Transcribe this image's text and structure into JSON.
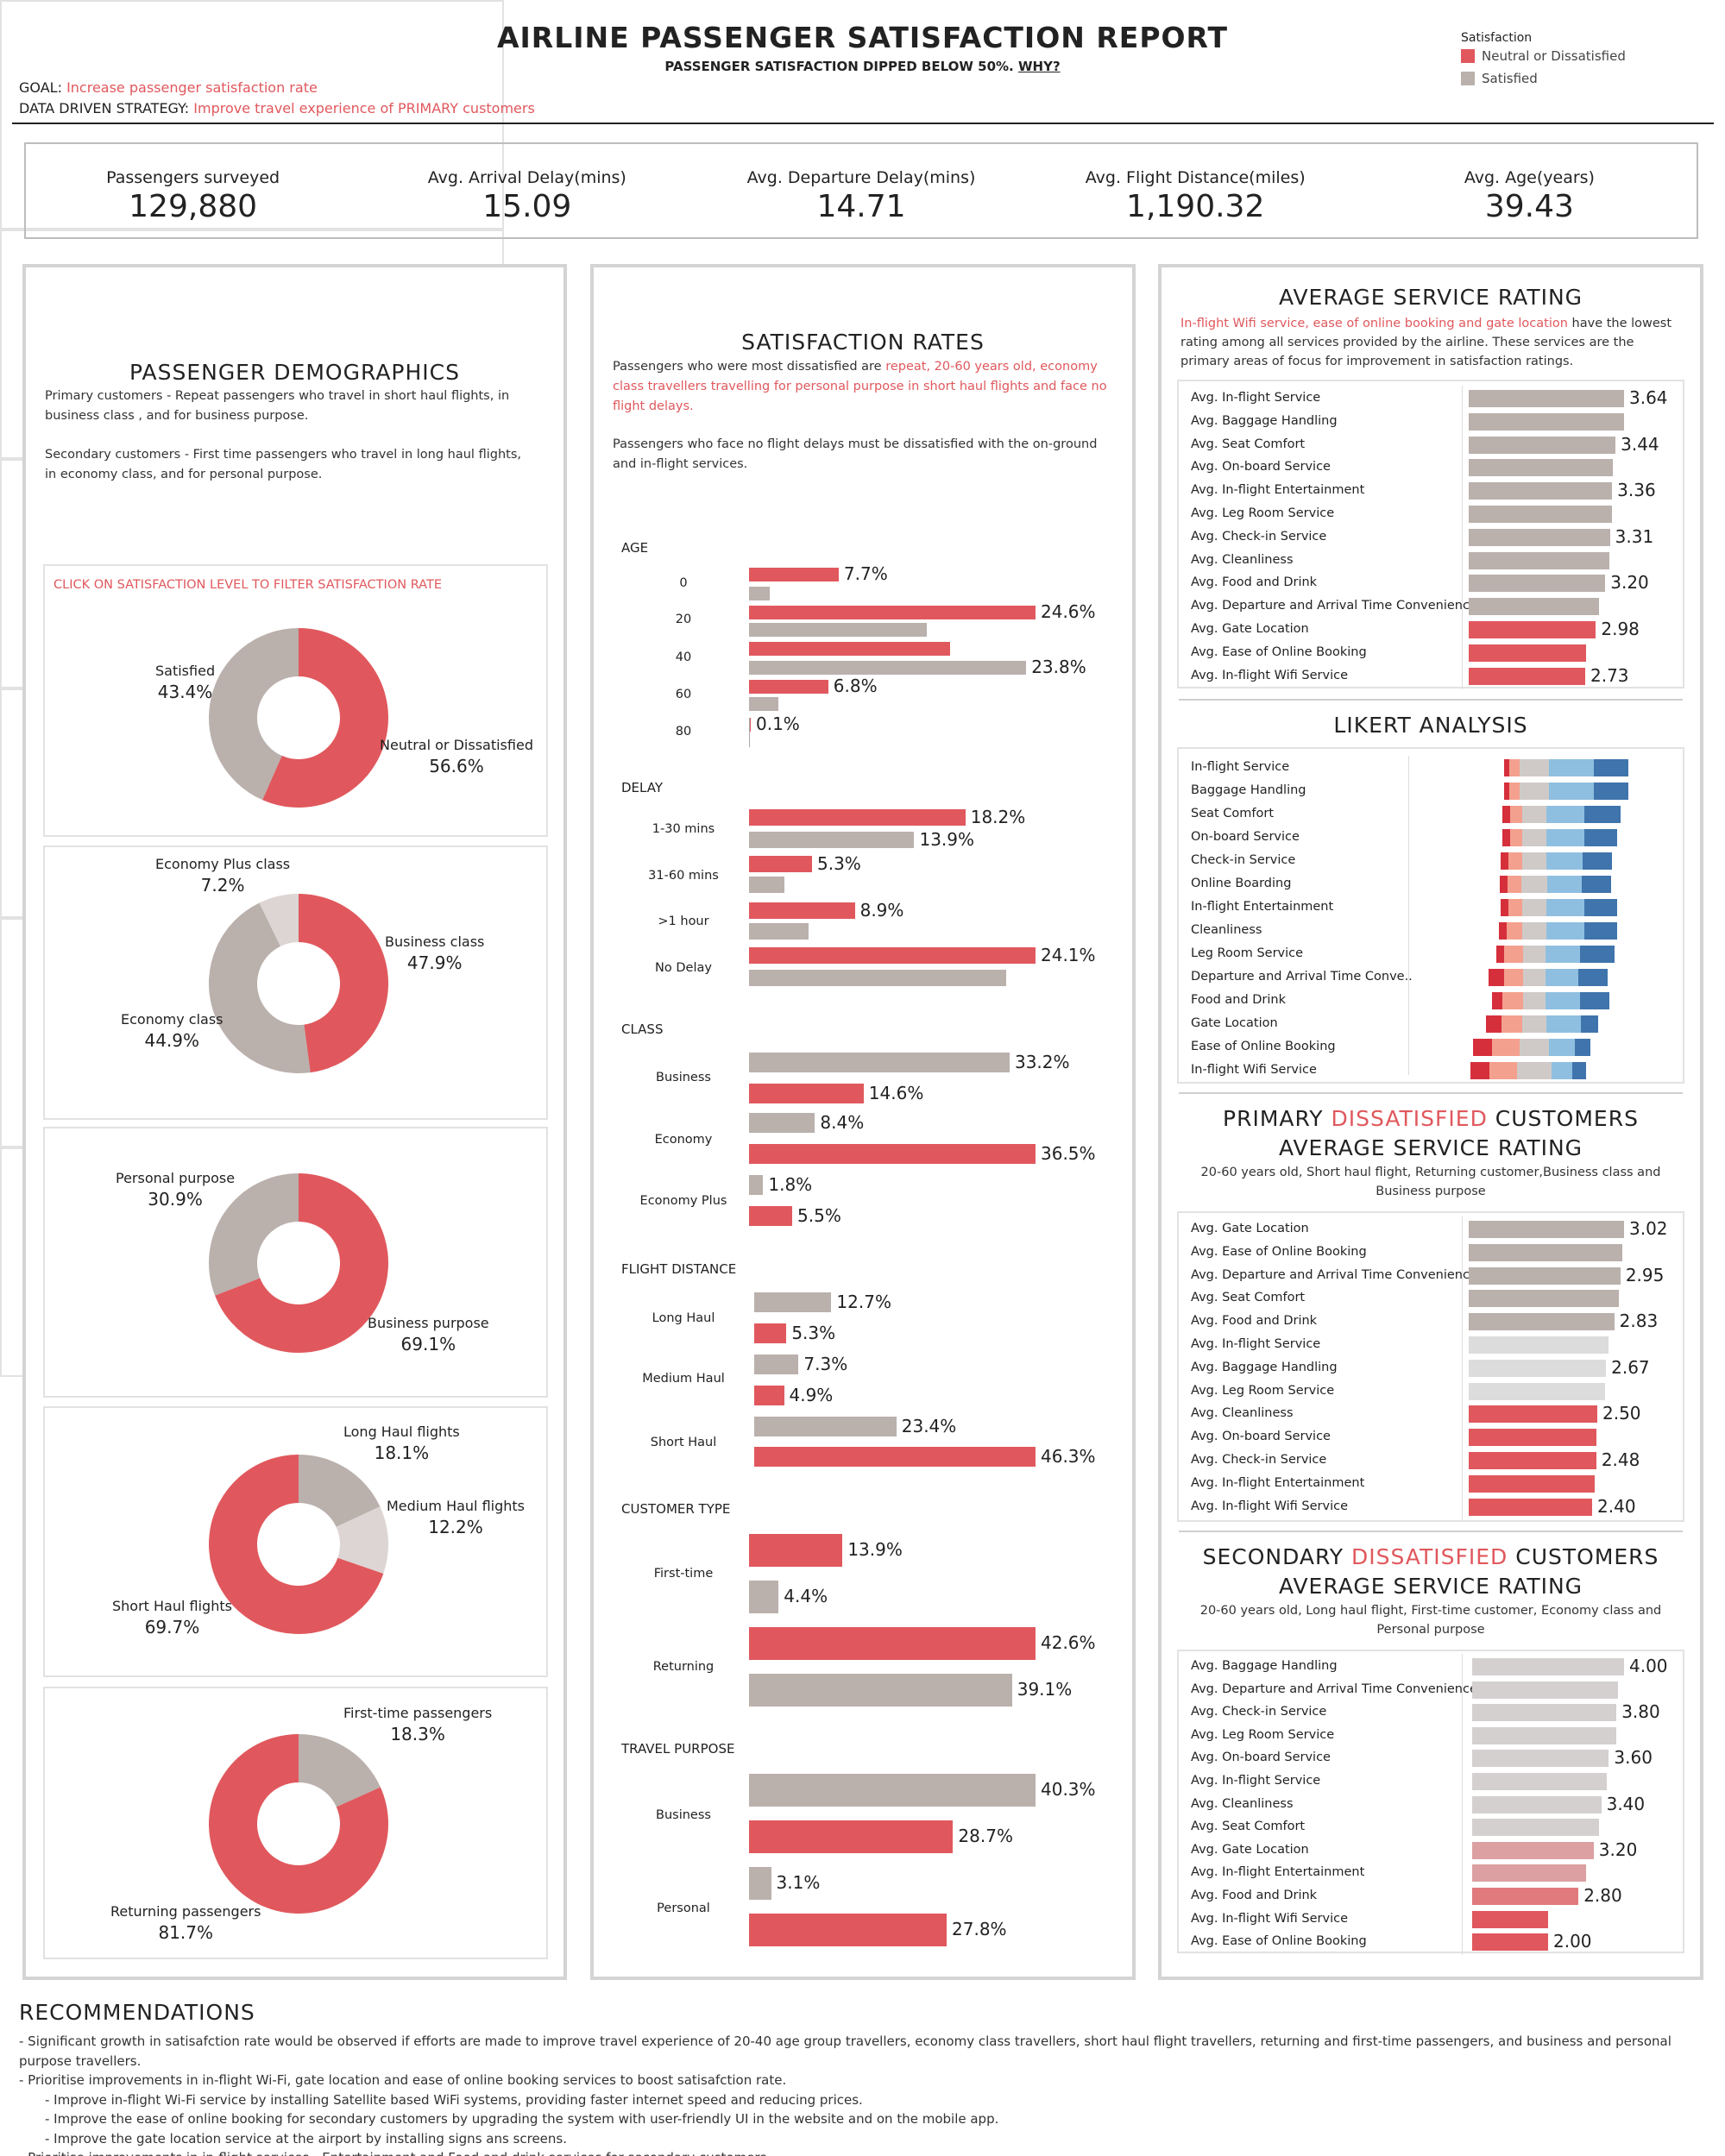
{
  "header": {
    "title": "AIRLINE PASSENGER SATISFACTION REPORT",
    "subtitle": "PASSENGER SATISFACTION DIPPED BELOW 50%.",
    "subtitle_link": "WHY?",
    "goal_label": "GOAL:",
    "goal_value": "Increase passenger satisfaction rate",
    "strategy_label": "DATA DRIVEN STRATEGY:",
    "strategy_value": "Improve travel experience of PRIMARY customers",
    "legend_title": "Satisfaction",
    "legend_items": [
      {
        "label": "Neutral or Dissatisfied",
        "color": "#e0585d"
      },
      {
        "label": "Satisfied",
        "color": "#bab0ac"
      }
    ]
  },
  "kpis": [
    {
      "label": "Passengers surveyed",
      "value": "129,880"
    },
    {
      "label": "Avg. Arrival Delay(mins)",
      "value": "15.09"
    },
    {
      "label": "Avg. Departure Delay(mins)",
      "value": "14.71"
    },
    {
      "label": "Avg. Flight Distance(miles)",
      "value": "1,190.32"
    },
    {
      "label": "Avg. Age(years)",
      "value": "39.43"
    }
  ],
  "demographics": {
    "title": "PASSENGER DEMOGRAPHICS",
    "desc1": "Primary customers - Repeat passengers who travel in short haul flights, in business class , and for business purpose.",
    "desc2": "Secondary customers -  First time passengers who travel in long haul flights, in economy class, and for personal purpose.",
    "filter_hint": "CLICK ON SATISFACTION LEVEL TO FILTER SATISFACTION RATE"
  },
  "satisfaction": {
    "title": "SATISFACTION RATES",
    "desc_a": "Passengers who were most dissatisfied are ",
    "desc_b": "repeat, 20-60 years old, economy class travellers travelling for personal purpose in short haul flights and face no flight delays.",
    "desc2": "Passengers who face no flight delays must be dissatisfied with the on-ground and in-flight services."
  },
  "avg_service": {
    "title": "AVERAGE SERVICE RATING",
    "desc_a": "In-flight Wifi service, ease of online booking and gate location",
    "desc_b": " have the lowest rating among all services provided by the airline. These services are the primary areas of focus for improvement in satisfaction ratings."
  },
  "likert": {
    "title": "LIKERT ANALYSIS"
  },
  "primary": {
    "title_a": "PRIMARY ",
    "title_b": "DISSATISFIED",
    " title_c": "",
    "title_c": " CUSTOMERS",
    "title_line2": "AVERAGE SERVICE RATING",
    "desc": "20-60 years old, Short haul flight, Returning customer,Business class and Business purpose"
  },
  "secondary": {
    "title_a": "SECONDARY ",
    "title_b": "DISSATISFIED",
    "title_c": " CUSTOMERS",
    "title_line2": "AVERAGE SERVICE RATING",
    "desc": "20-60 years old, Long haul flight, First-time customer, Economy class and Personal purpose"
  },
  "recommendations": {
    "title": "RECOMMENDATIONS",
    "lines": [
      "- Significant growth in satisafction rate would be observed if efforts are made to improve travel experience of 20-40 age group travellers, economy class travellers, short haul flight travellers, returning and first-time passengers, and business and personal purpose travellers.",
      "- Prioritise improvements in in-flight Wi-Fi, gate location and ease of online booking services to boost satisafction rate.",
      "- Improve in-flight Wi-Fi service by installing Satellite based WiFi systems,  providing faster internet speed and reducing prices.",
      "- Improve the ease of online booking for secondary customers by upgrading the system with user-friendly UI in the website and on the mobile app.",
      "- Improve the gate location service at the airport by installing signs ans screens.",
      "- Prioritise improvements in in-flight services - Entertainment and Food and drink services for secondary customers."
    ],
    "indent": [
      false,
      false,
      true,
      true,
      true,
      false
    ]
  },
  "chart_data": [
    {
      "type": "pie",
      "name": "satisfaction-donut",
      "labels": [
        "Neutral or Dissatisfied",
        "Satisfied"
      ],
      "values": [
        56.6,
        43.4
      ],
      "display": [
        "56.6%",
        "43.4%"
      ],
      "colors": [
        "#e0585d",
        "#bab0ac"
      ]
    },
    {
      "type": "pie",
      "name": "class-donut",
      "labels": [
        "Business class",
        "Economy class",
        "Economy Plus class"
      ],
      "values": [
        47.9,
        44.9,
        7.2
      ],
      "display": [
        "47.9%",
        "44.9%",
        "7.2%"
      ],
      "colors": [
        "#e0585d",
        "#bab0ac",
        "#ddd5d3"
      ]
    },
    {
      "type": "pie",
      "name": "purpose-donut",
      "labels": [
        "Business purpose",
        "Personal purpose"
      ],
      "values": [
        69.1,
        30.9
      ],
      "display": [
        "69.1%",
        "30.9%"
      ],
      "colors": [
        "#e0585d",
        "#bab0ac"
      ]
    },
    {
      "type": "pie",
      "name": "haul-donut",
      "labels": [
        "Long Haul flights",
        "Medium Haul flights",
        "Short Haul flights"
      ],
      "values": [
        18.1,
        12.2,
        69.7
      ],
      "display": [
        "18.1%",
        "12.2%",
        "69.7%"
      ],
      "colors": [
        "#bab0ac",
        "#ddd5d3",
        "#e0585d"
      ]
    },
    {
      "type": "pie",
      "name": "customer-donut",
      "labels": [
        "First-time  passengers",
        "Returning  passengers"
      ],
      "values": [
        18.3,
        81.7
      ],
      "display": [
        "18.3%",
        "81.7%"
      ],
      "colors": [
        "#bab0ac",
        "#e0585d"
      ]
    },
    {
      "type": "bar",
      "name": "age",
      "title": "AGE",
      "orientation": "horizontal",
      "categories": [
        "0",
        "20",
        "40",
        "60",
        "80"
      ],
      "series": [
        {
          "name": "Neutral or Dissatisfied",
          "values": [
            7.7,
            24.6,
            17.3,
            6.8,
            0.1
          ]
        },
        {
          "name": "Satisfied",
          "values": [
            1.8,
            15.3,
            23.8,
            2.5,
            null
          ]
        }
      ],
      "labels": [
        [
          "7.7%",
          "24.6%",
          "",
          "6.8%",
          "0.1%"
        ],
        [
          "",
          "",
          "23.8%",
          "",
          ""
        ]
      ]
    },
    {
      "type": "bar",
      "name": "delay",
      "title": "DELAY",
      "orientation": "horizontal",
      "categories": [
        "1-30 mins",
        "31-60 mins",
        ">1 hour",
        "No Delay"
      ],
      "series": [
        {
          "name": "Neutral or Dissatisfied",
          "values": [
            18.2,
            5.3,
            8.9,
            24.1
          ]
        },
        {
          "name": "Satisfied",
          "values": [
            13.9,
            3.0,
            5.0,
            21.6
          ]
        }
      ],
      "labels": [
        [
          "18.2%",
          "5.3%",
          "8.9%",
          "24.1%"
        ],
        [
          "13.9%",
          "",
          "",
          ""
        ]
      ]
    },
    {
      "type": "bar",
      "name": "class",
      "title": "CLASS",
      "orientation": "horizontal",
      "categories": [
        "Business",
        "Economy",
        "Economy Plus"
      ],
      "series": [
        {
          "name": "Satisfied",
          "values": [
            33.2,
            8.4,
            1.8
          ]
        },
        {
          "name": "Neutral or Dissatisfied",
          "values": [
            14.6,
            36.5,
            5.5
          ]
        }
      ],
      "labels": [
        [
          "33.2%",
          "8.4%",
          "1.8%"
        ],
        [
          "14.6%",
          "36.5%",
          "5.5%"
        ]
      ]
    },
    {
      "type": "bar",
      "name": "flight-distance",
      "title": "FLIGHT DISTANCE",
      "orientation": "horizontal",
      "categories": [
        "Long Haul",
        "Medium Haul",
        "Short Haul"
      ],
      "series": [
        {
          "name": "Satisfied",
          "values": [
            12.7,
            7.3,
            23.4
          ]
        },
        {
          "name": "Neutral or Dissatisfied",
          "values": [
            5.3,
            4.9,
            46.3
          ]
        }
      ],
      "labels": [
        [
          "12.7%",
          "7.3%",
          "23.4%"
        ],
        [
          "5.3%",
          "4.9%",
          "46.3%"
        ]
      ]
    },
    {
      "type": "bar",
      "name": "customer-type",
      "title": "CUSTOMER TYPE",
      "orientation": "horizontal",
      "categories": [
        "First-time",
        "Returning"
      ],
      "series": [
        {
          "name": "Neutral or Dissatisfied",
          "values": [
            13.9,
            42.6
          ]
        },
        {
          "name": "Satisfied",
          "values": [
            4.4,
            39.1
          ]
        }
      ],
      "labels": [
        [
          "13.9%",
          "42.6%"
        ],
        [
          "4.4%",
          "39.1%"
        ]
      ]
    },
    {
      "type": "bar",
      "name": "travel-purpose",
      "title": "TRAVEL PURPOSE",
      "orientation": "horizontal",
      "categories": [
        "Business",
        "Personal"
      ],
      "series": [
        {
          "name": "Satisfied",
          "values": [
            40.3,
            3.1
          ]
        },
        {
          "name": "Neutral or Dissatisfied",
          "values": [
            28.7,
            27.8
          ]
        }
      ],
      "labels": [
        [
          "40.3%",
          "3.1%"
        ],
        [
          "28.7%",
          "27.8%"
        ]
      ]
    },
    {
      "type": "bar",
      "name": "average-service-rating",
      "orientation": "horizontal",
      "categories": [
        "Avg. In-flight Service",
        "Avg. Baggage Handling",
        "Avg. Seat Comfort",
        "Avg. On-board Service",
        "Avg. In-flight Entertainment",
        "Avg. Leg Room Service",
        "Avg. Check-in Service",
        "Avg. Cleanliness",
        "Avg. Food and Drink",
        "Avg. Departure and Arrival Time Convenience",
        "Avg. Gate Location",
        "Avg. Ease of Online Booking",
        "Avg. In-flight Wifi Service"
      ],
      "values": [
        3.64,
        3.63,
        3.44,
        3.38,
        3.36,
        3.35,
        3.31,
        3.29,
        3.2,
        3.06,
        2.98,
        2.76,
        2.73
      ],
      "labels": [
        "3.64",
        "",
        "3.44",
        "",
        "3.36",
        "",
        "3.31",
        "",
        "3.20",
        "",
        "2.98",
        "",
        "2.73"
      ],
      "colors": [
        "#bab0ac",
        "#bab0ac",
        "#bab0ac",
        "#bab0ac",
        "#bab0ac",
        "#bab0ac",
        "#bab0ac",
        "#bab0ac",
        "#bab0ac",
        "#bab0ac",
        "#e0585d",
        "#e0585d",
        "#e0585d"
      ],
      "xlim": [
        0,
        3.64
      ]
    },
    {
      "type": "bar",
      "name": "likert",
      "stacked": true,
      "orientation": "horizontal",
      "categories": [
        "In-flight Service",
        "Baggage Handling",
        "Seat Comfort",
        "On-board Service",
        "Check-in Service",
        "Online Boarding",
        "In-flight Entertainment",
        "Cleanliness",
        "Leg Room Service",
        "Departure and Arrival Time Conve..",
        "Food and Drink",
        "Gate Location",
        "Ease of Online Booking",
        "In-flight Wifi Service"
      ],
      "segments": [
        "1",
        "2",
        "3",
        "4",
        "5"
      ],
      "segment_colors": [
        "#d62f3c",
        "#f4a08e",
        "#cfcac8",
        "#8fbfe0",
        "#3f74ac"
      ],
      "values": [
        [
          6,
          12,
          34,
          52,
          40
        ],
        [
          6,
          12,
          34,
          52,
          40
        ],
        [
          9,
          14,
          28,
          44,
          42
        ],
        [
          9,
          14,
          28,
          44,
          38
        ],
        [
          9,
          16,
          28,
          42,
          34
        ],
        [
          9,
          16,
          30,
          40,
          34
        ],
        [
          9,
          16,
          28,
          44,
          38
        ],
        [
          9,
          18,
          28,
          44,
          38
        ],
        [
          9,
          22,
          26,
          40,
          40
        ],
        [
          18,
          22,
          26,
          38,
          34
        ],
        [
          12,
          24,
          26,
          40,
          34
        ],
        [
          18,
          24,
          28,
          40,
          20
        ],
        [
          22,
          32,
          34,
          30,
          18
        ],
        [
          22,
          32,
          40,
          24,
          16
        ]
      ]
    },
    {
      "type": "bar",
      "name": "primary-dissatisfied-rating",
      "orientation": "horizontal",
      "categories": [
        "Avg. Gate Location",
        "Avg. Ease of Online Booking",
        "Avg. Departure and Arrival Time Convenience",
        "Avg. Seat Comfort",
        "Avg. Food and Drink",
        "Avg. In-flight Service",
        "Avg. Baggage Handling",
        "Avg. Leg Room Service",
        "Avg. Cleanliness",
        "Avg. On-board Service",
        "Avg. Check-in Service",
        "Avg. In-flight Entertainment",
        "Avg. In-flight Wifi Service"
      ],
      "values": [
        3.02,
        2.98,
        2.95,
        2.92,
        2.83,
        2.71,
        2.67,
        2.65,
        2.5,
        2.48,
        2.48,
        2.45,
        2.4
      ],
      "labels": [
        "3.02",
        "",
        "2.95",
        "",
        "2.83",
        "",
        "2.67",
        "",
        "2.50",
        "",
        "2.48",
        "",
        "2.40"
      ],
      "colors": [
        "#bab0ac",
        "#bab0ac",
        "#bab0ac",
        "#bab0ac",
        "#bab0ac",
        "#dcdcdc",
        "#dcdcdc",
        "#dcdcdc",
        "#e0585d",
        "#e0585d",
        "#e0585d",
        "#e0585d",
        "#e0585d"
      ],
      "xlim": [
        0,
        3.02
      ]
    },
    {
      "type": "bar",
      "name": "secondary-dissatisfied-rating",
      "orientation": "horizontal",
      "categories": [
        "Avg. Baggage Handling",
        "Avg. Departure and Arrival Time Convenience",
        "Avg. Check-in Service",
        "Avg. Leg Room Service",
        "Avg. On-board Service",
        "Avg. In-flight Service",
        "Avg. Cleanliness",
        "Avg. Seat Comfort",
        "Avg. Gate Location",
        "Avg. In-flight Entertainment",
        "Avg. Food and Drink",
        "Avg. In-flight Wifi Service",
        "Avg. Ease of Online Booking"
      ],
      "values": [
        4.0,
        3.85,
        3.8,
        3.8,
        3.6,
        3.55,
        3.4,
        3.35,
        3.2,
        3.0,
        2.8,
        2.0,
        2.0
      ],
      "labels": [
        "4.00",
        "",
        "3.80",
        "",
        "3.60",
        "",
        "3.40",
        "",
        "3.20",
        "",
        "2.80",
        "",
        "2.00"
      ],
      "colors": [
        "#d4d0cf",
        "#d4d0cf",
        "#d4d0cf",
        "#d4d0cf",
        "#d4d0cf",
        "#d4d0cf",
        "#d4d0cf",
        "#d4d0cf",
        "#dca0a2",
        "#dca0a2",
        "#e07a7d",
        "#e0585d",
        "#e0585d"
      ],
      "xlim": [
        0,
        4.0
      ]
    }
  ]
}
